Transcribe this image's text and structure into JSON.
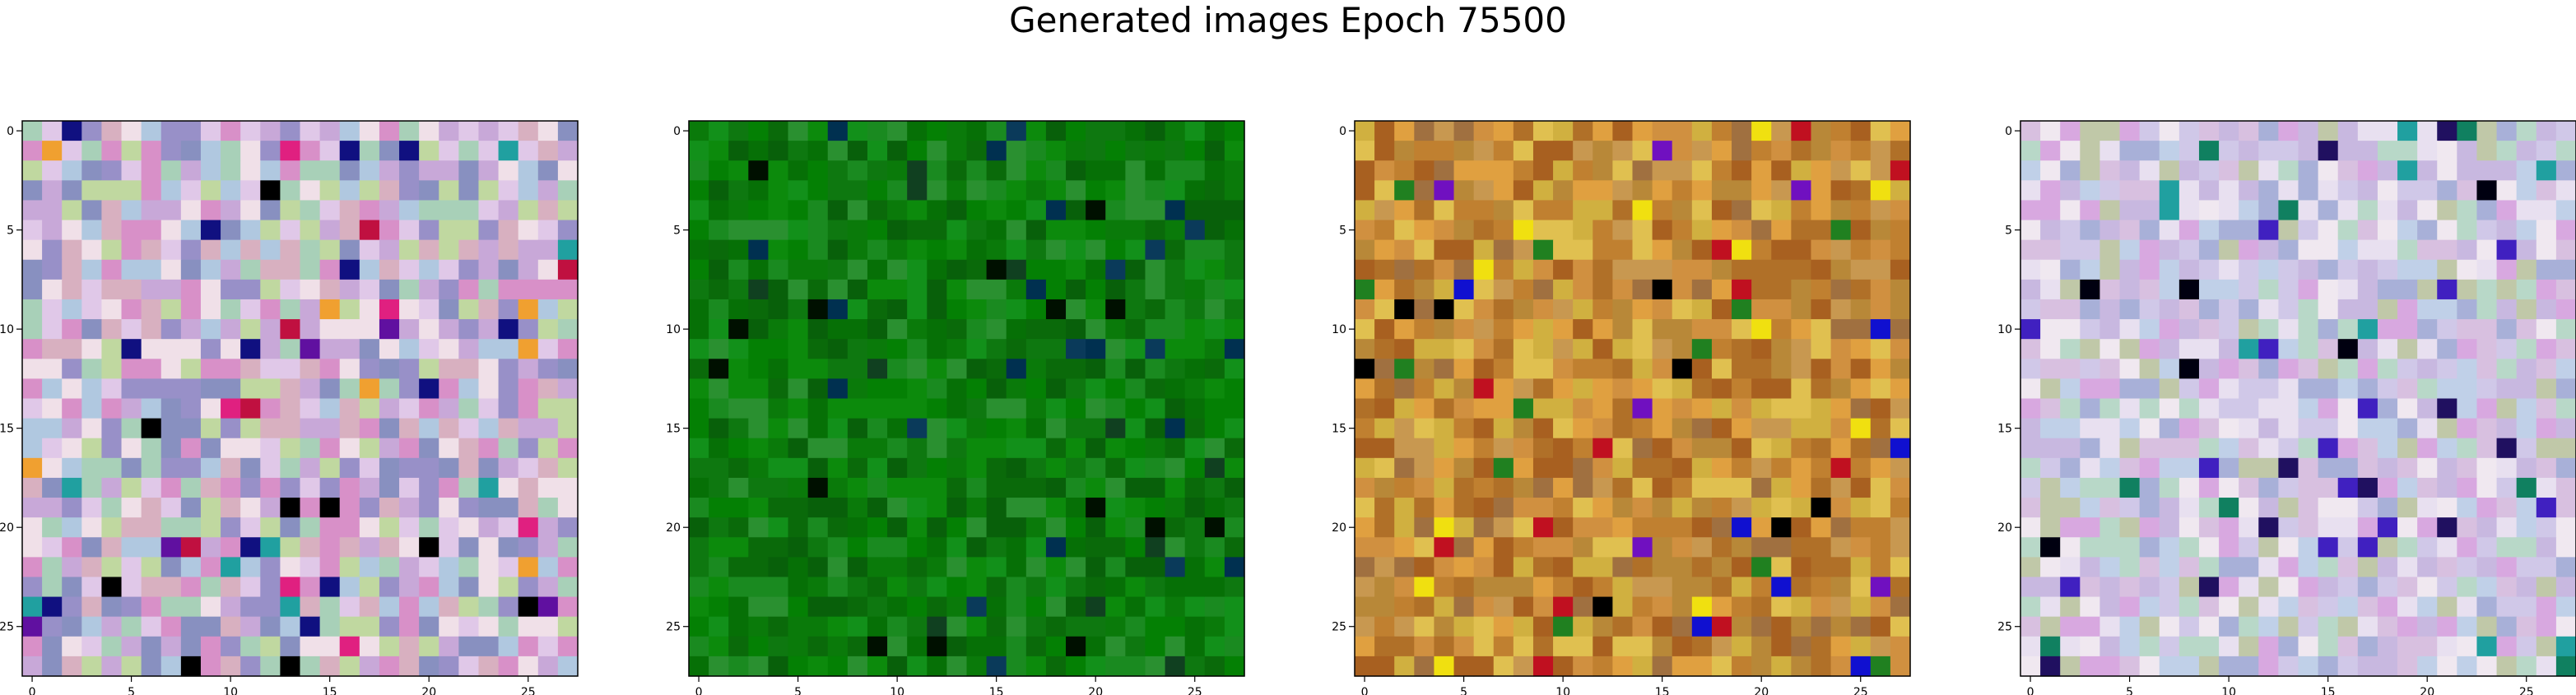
{
  "figure": {
    "title": "Generated images Epoch 75500"
  },
  "chart_data": [
    {
      "type": "heatmap",
      "title": "",
      "xlabel": "",
      "ylabel": "",
      "grid_size": 28,
      "xlim": [
        -0.5,
        27.5
      ],
      "ylim": [
        27.5,
        -0.5
      ],
      "xticks": [
        0,
        5,
        10,
        15,
        20,
        25
      ],
      "yticks": [
        0,
        5,
        10,
        15,
        20,
        25
      ],
      "palette": [
        "#c8a8d8",
        "#e0c8e8",
        "#b0c8e0",
        "#d8b0c0",
        "#a8d0b8",
        "#9890c8",
        "#f0e0e8",
        "#c0d8a0",
        "#d890c8",
        "#8890c0"
      ],
      "accent_colors": [
        "#000000",
        "#c01040",
        "#101080",
        "#20a0a0",
        "#e02080",
        "#6010a0",
        "#f0a030"
      ],
      "grid_on": false
    },
    {
      "type": "heatmap",
      "title": "",
      "xlabel": "",
      "ylabel": "",
      "grid_size": 28,
      "xlim": [
        -0.5,
        27.5
      ],
      "ylim": [
        27.5,
        -0.5
      ],
      "xticks": [
        0,
        5,
        10,
        15,
        20,
        25
      ],
      "yticks": [
        0,
        5,
        10,
        15,
        20,
        25
      ],
      "palette": [
        "#0a7a0a",
        "#0c8a0c",
        "#067006",
        "#12901a",
        "#0a6a0a",
        "#1a8a20",
        "#048004",
        "#2a9030",
        "#0e7810",
        "#08600a"
      ],
      "accent_colors": [
        "#001000",
        "#104020",
        "#0a3a5a",
        "#003050"
      ],
      "grid_on": false
    },
    {
      "type": "heatmap",
      "title": "",
      "xlabel": "",
      "ylabel": "",
      "grid_size": 28,
      "xlim": [
        -0.5,
        27.5
      ],
      "ylim": [
        27.5,
        -0.5
      ],
      "xticks": [
        0,
        5,
        10,
        15,
        20,
        25
      ],
      "yticks": [
        0,
        5,
        10,
        15,
        20,
        25
      ],
      "palette": [
        "#c08030",
        "#d09040",
        "#b07028",
        "#e0a040",
        "#a86020",
        "#c89850",
        "#d0b040",
        "#a07040",
        "#b88838",
        "#e0c050"
      ],
      "accent_colors": [
        "#1010d0",
        "#000000",
        "#c01020",
        "#7010c0",
        "#208020",
        "#f0e010"
      ],
      "grid_on": false
    },
    {
      "type": "heatmap",
      "title": "",
      "xlabel": "",
      "ylabel": "",
      "grid_size": 28,
      "xlim": [
        -0.5,
        27.5
      ],
      "ylim": [
        27.5,
        -0.5
      ],
      "xticks": [
        0,
        5,
        10,
        15,
        20,
        25
      ],
      "yticks": [
        0,
        5,
        10,
        15,
        20,
        25
      ],
      "palette": [
        "#d0c8e8",
        "#e8e0f0",
        "#c0d0e8",
        "#d8c0e0",
        "#b8d8c8",
        "#c8b8e0",
        "#f0e8f0",
        "#c0c8a8",
        "#d8a8e0",
        "#a8b0d8"
      ],
      "accent_colors": [
        "#000010",
        "#201060",
        "#108060",
        "#4020c0",
        "#20a0a0"
      ],
      "grid_on": false
    }
  ]
}
